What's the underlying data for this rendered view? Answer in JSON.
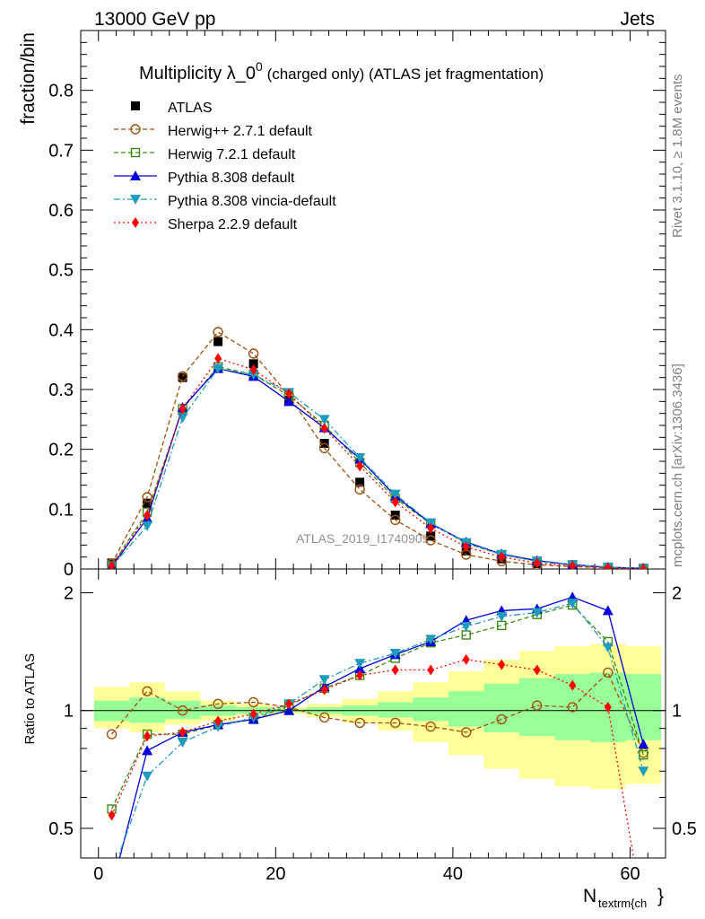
{
  "header": {
    "left": "13000 GeV pp",
    "right": "Jets"
  },
  "side_labels": {
    "rivet": "Rivet 3.1.10, ≥ 1.8M events",
    "mcplots": "mcplots.cern.ch [arXiv:1306.3436]"
  },
  "watermark": "ATLAS_2019_I1740909",
  "title": {
    "main": "Multiplicity λ_0",
    "sup": "0",
    "rest": " (charged only) (ATLAS jet fragmentation)"
  },
  "legend": [
    {
      "label": "ATLAS",
      "color": "#000000",
      "marker": "square-filled",
      "line": "none"
    },
    {
      "label": "Herwig++ 2.7.1 default",
      "color": "#a0500a",
      "marker": "circle-open",
      "line": "dashed"
    },
    {
      "label": "Herwig 7.2.1 default",
      "color": "#3c8c14",
      "marker": "square-open",
      "line": "dashed"
    },
    {
      "label": "Pythia 8.308 default",
      "color": "#0000dc",
      "marker": "triangle-up",
      "line": "solid"
    },
    {
      "label": "Pythia 8.308 vincia-default",
      "color": "#1e9bbe",
      "marker": "triangle-down",
      "line": "dashdot"
    },
    {
      "label": "Sherpa 2.2.9 default",
      "color": "#ff0000",
      "marker": "diamond",
      "line": "dotted"
    }
  ],
  "chart_data": [
    {
      "type": "line",
      "ylabel": "fraction/bin",
      "xlim": [
        -2,
        64
      ],
      "ylim": [
        0,
        0.9
      ],
      "yticks": [
        0,
        0.1,
        0.2,
        0.3,
        0.4,
        0.5,
        0.6,
        0.7,
        0.8
      ],
      "ytick_labels": [
        "0",
        "0.1",
        "0.2",
        "0.3",
        "0.4",
        "0.5",
        "0.6",
        "0.7",
        "0.8"
      ],
      "grid": false,
      "legend_position": "top-left",
      "x": [
        1.5,
        5.5,
        9.5,
        13.5,
        17.5,
        21.5,
        25.5,
        29.5,
        33.5,
        37.5,
        41.5,
        45.5,
        49.5,
        53.5,
        57.5,
        61.5
      ],
      "series": [
        {
          "name": "ATLAS",
          "values": [
            0.01,
            0.11,
            0.32,
            0.38,
            0.343,
            0.282,
            0.21,
            0.145,
            0.09,
            0.055,
            0.03,
            0.017,
            0.009,
            0.005,
            0.002,
            0.001
          ]
        },
        {
          "name": "Herwig++ 2.7.1 default",
          "values": [
            0.009,
            0.12,
            0.322,
            0.396,
            0.36,
            0.29,
            0.202,
            0.133,
            0.082,
            0.048,
            0.024,
            0.013,
            0.007,
            0.004,
            0.002,
            0.001
          ]
        },
        {
          "name": "Herwig 7.2.1 default",
          "values": [
            0.006,
            0.095,
            0.268,
            0.338,
            0.325,
            0.29,
            0.24,
            0.178,
            0.118,
            0.076,
            0.043,
            0.024,
            0.013,
            0.007,
            0.003,
            0.001
          ]
        },
        {
          "name": "Pythia 8.308 default",
          "values": [
            0.004,
            0.085,
            0.27,
            0.335,
            0.322,
            0.28,
            0.236,
            0.184,
            0.122,
            0.076,
            0.045,
            0.025,
            0.014,
            0.007,
            0.003,
            0.001
          ]
        },
        {
          "name": "Pythia 8.308 vincia-default",
          "values": [
            0.004,
            0.072,
            0.253,
            0.335,
            0.325,
            0.295,
            0.25,
            0.186,
            0.125,
            0.077,
            0.044,
            0.024,
            0.013,
            0.007,
            0.003,
            0.001
          ]
        },
        {
          "name": "Sherpa 2.2.9 default",
          "values": [
            0.005,
            0.09,
            0.268,
            0.352,
            0.333,
            0.293,
            0.235,
            0.172,
            0.112,
            0.068,
            0.037,
            0.02,
            0.01,
            0.005,
            0.002,
            0.0003
          ]
        }
      ]
    },
    {
      "type": "line",
      "ylabel": "Ratio to ATLAS",
      "xlabel": "N_textrm{ch}",
      "xlim": [
        -2,
        64
      ],
      "ylim": [
        0.42,
        2.3
      ],
      "log_y": true,
      "yticks": [
        0.5,
        1,
        2
      ],
      "ytick_labels": [
        "0.5",
        "1",
        "2"
      ],
      "xticks": [
        0,
        20,
        40,
        60
      ],
      "xtick_labels": [
        "0",
        "20",
        "40",
        "60"
      ],
      "grid": false,
      "x": [
        1.5,
        5.5,
        9.5,
        13.5,
        17.5,
        21.5,
        25.5,
        29.5,
        33.5,
        37.5,
        41.5,
        45.5,
        49.5,
        53.5,
        57.5,
        61.5
      ],
      "bands": {
        "x_edges": [
          -0.5,
          3.5,
          7.5,
          11.5,
          15.5,
          19.5,
          23.5,
          27.5,
          31.5,
          35.5,
          39.5,
          43.5,
          47.5,
          51.5,
          55.5,
          59.5,
          63.5
        ],
        "stat_low": [
          0.94,
          0.93,
          0.95,
          0.97,
          0.98,
          0.99,
          0.98,
          0.97,
          0.96,
          0.94,
          0.91,
          0.88,
          0.86,
          0.84,
          0.83,
          0.84
        ],
        "stat_high": [
          1.06,
          1.08,
          1.06,
          1.03,
          1.02,
          1.01,
          1.02,
          1.03,
          1.05,
          1.08,
          1.12,
          1.17,
          1.21,
          1.24,
          1.25,
          1.24
        ],
        "syst_low": [
          0.9,
          0.88,
          0.92,
          0.94,
          0.97,
          0.98,
          0.96,
          0.93,
          0.89,
          0.83,
          0.77,
          0.71,
          0.67,
          0.64,
          0.63,
          0.65
        ],
        "syst_high": [
          1.15,
          1.18,
          1.12,
          1.06,
          1.04,
          1.02,
          1.04,
          1.07,
          1.12,
          1.18,
          1.26,
          1.35,
          1.42,
          1.46,
          1.48,
          1.46
        ]
      },
      "series": [
        {
          "name": "Herwig++ 2.7.1 default",
          "values": [
            0.87,
            1.12,
            1.0,
            1.04,
            1.05,
            1.02,
            0.96,
            0.93,
            0.93,
            0.91,
            0.88,
            0.95,
            1.03,
            1.02,
            1.25,
            0.78
          ]
        },
        {
          "name": "Herwig 7.2.1 default",
          "values": [
            0.56,
            0.87,
            0.87,
            0.92,
            0.95,
            1.03,
            1.14,
            1.23,
            1.36,
            1.49,
            1.56,
            1.65,
            1.76,
            1.86,
            1.5,
            0.77
          ]
        },
        {
          "name": "Pythia 8.308 default",
          "values": [
            0.35,
            0.79,
            0.88,
            0.92,
            0.95,
            1.0,
            1.15,
            1.28,
            1.39,
            1.5,
            1.7,
            1.8,
            1.82,
            1.95,
            1.8,
            0.82
          ]
        },
        {
          "name": "Pythia 8.308 vincia-default",
          "values": [
            0.38,
            0.68,
            0.83,
            0.91,
            0.96,
            1.04,
            1.2,
            1.32,
            1.4,
            1.52,
            1.64,
            1.74,
            1.78,
            1.88,
            1.45,
            0.7
          ]
        },
        {
          "name": "Sherpa 2.2.9 default",
          "values": [
            0.54,
            0.86,
            0.88,
            0.94,
            0.98,
            1.04,
            1.13,
            1.23,
            1.27,
            1.27,
            1.35,
            1.31,
            1.27,
            1.16,
            1.02,
            0.3
          ]
        }
      ]
    }
  ]
}
